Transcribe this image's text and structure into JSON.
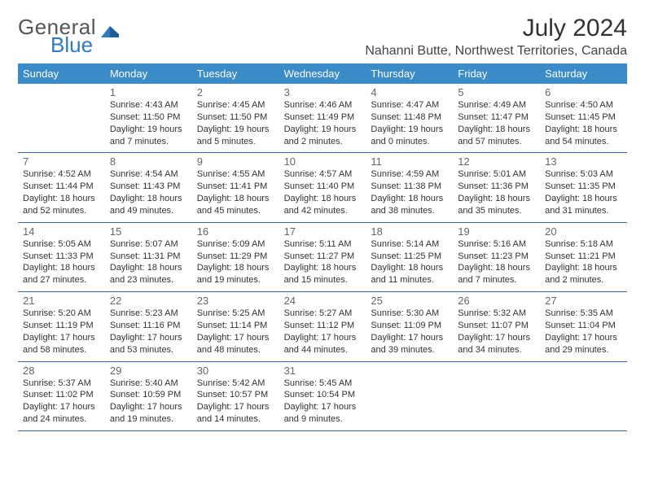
{
  "brand": {
    "part1": "General",
    "part2": "Blue",
    "accent": "#2f7bbf",
    "text": "#555"
  },
  "header": {
    "title": "July 2024",
    "location": "Nahanni Butte, Northwest Territories, Canada"
  },
  "colors": {
    "header_bg": "#3b8bc9",
    "divider": "#2f6ea8",
    "body_text": "#333",
    "daynum": "#666"
  },
  "typography": {
    "title_size": 30,
    "location_size": 16,
    "dow_size": 13,
    "cell_size": 11
  },
  "dow": [
    "Sunday",
    "Monday",
    "Tuesday",
    "Wednesday",
    "Thursday",
    "Friday",
    "Saturday"
  ],
  "weeks": [
    [
      null,
      {
        "d": "1",
        "sr": "Sunrise: 4:43 AM",
        "ss": "Sunset: 11:50 PM",
        "dl1": "Daylight: 19 hours",
        "dl2": "and 7 minutes."
      },
      {
        "d": "2",
        "sr": "Sunrise: 4:45 AM",
        "ss": "Sunset: 11:50 PM",
        "dl1": "Daylight: 19 hours",
        "dl2": "and 5 minutes."
      },
      {
        "d": "3",
        "sr": "Sunrise: 4:46 AM",
        "ss": "Sunset: 11:49 PM",
        "dl1": "Daylight: 19 hours",
        "dl2": "and 2 minutes."
      },
      {
        "d": "4",
        "sr": "Sunrise: 4:47 AM",
        "ss": "Sunset: 11:48 PM",
        "dl1": "Daylight: 19 hours",
        "dl2": "and 0 minutes."
      },
      {
        "d": "5",
        "sr": "Sunrise: 4:49 AM",
        "ss": "Sunset: 11:47 PM",
        "dl1": "Daylight: 18 hours",
        "dl2": "and 57 minutes."
      },
      {
        "d": "6",
        "sr": "Sunrise: 4:50 AM",
        "ss": "Sunset: 11:45 PM",
        "dl1": "Daylight: 18 hours",
        "dl2": "and 54 minutes."
      }
    ],
    [
      {
        "d": "7",
        "sr": "Sunrise: 4:52 AM",
        "ss": "Sunset: 11:44 PM",
        "dl1": "Daylight: 18 hours",
        "dl2": "and 52 minutes."
      },
      {
        "d": "8",
        "sr": "Sunrise: 4:54 AM",
        "ss": "Sunset: 11:43 PM",
        "dl1": "Daylight: 18 hours",
        "dl2": "and 49 minutes."
      },
      {
        "d": "9",
        "sr": "Sunrise: 4:55 AM",
        "ss": "Sunset: 11:41 PM",
        "dl1": "Daylight: 18 hours",
        "dl2": "and 45 minutes."
      },
      {
        "d": "10",
        "sr": "Sunrise: 4:57 AM",
        "ss": "Sunset: 11:40 PM",
        "dl1": "Daylight: 18 hours",
        "dl2": "and 42 minutes."
      },
      {
        "d": "11",
        "sr": "Sunrise: 4:59 AM",
        "ss": "Sunset: 11:38 PM",
        "dl1": "Daylight: 18 hours",
        "dl2": "and 38 minutes."
      },
      {
        "d": "12",
        "sr": "Sunrise: 5:01 AM",
        "ss": "Sunset: 11:36 PM",
        "dl1": "Daylight: 18 hours",
        "dl2": "and 35 minutes."
      },
      {
        "d": "13",
        "sr": "Sunrise: 5:03 AM",
        "ss": "Sunset: 11:35 PM",
        "dl1": "Daylight: 18 hours",
        "dl2": "and 31 minutes."
      }
    ],
    [
      {
        "d": "14",
        "sr": "Sunrise: 5:05 AM",
        "ss": "Sunset: 11:33 PM",
        "dl1": "Daylight: 18 hours",
        "dl2": "and 27 minutes."
      },
      {
        "d": "15",
        "sr": "Sunrise: 5:07 AM",
        "ss": "Sunset: 11:31 PM",
        "dl1": "Daylight: 18 hours",
        "dl2": "and 23 minutes."
      },
      {
        "d": "16",
        "sr": "Sunrise: 5:09 AM",
        "ss": "Sunset: 11:29 PM",
        "dl1": "Daylight: 18 hours",
        "dl2": "and 19 minutes."
      },
      {
        "d": "17",
        "sr": "Sunrise: 5:11 AM",
        "ss": "Sunset: 11:27 PM",
        "dl1": "Daylight: 18 hours",
        "dl2": "and 15 minutes."
      },
      {
        "d": "18",
        "sr": "Sunrise: 5:14 AM",
        "ss": "Sunset: 11:25 PM",
        "dl1": "Daylight: 18 hours",
        "dl2": "and 11 minutes."
      },
      {
        "d": "19",
        "sr": "Sunrise: 5:16 AM",
        "ss": "Sunset: 11:23 PM",
        "dl1": "Daylight: 18 hours",
        "dl2": "and 7 minutes."
      },
      {
        "d": "20",
        "sr": "Sunrise: 5:18 AM",
        "ss": "Sunset: 11:21 PM",
        "dl1": "Daylight: 18 hours",
        "dl2": "and 2 minutes."
      }
    ],
    [
      {
        "d": "21",
        "sr": "Sunrise: 5:20 AM",
        "ss": "Sunset: 11:19 PM",
        "dl1": "Daylight: 17 hours",
        "dl2": "and 58 minutes."
      },
      {
        "d": "22",
        "sr": "Sunrise: 5:23 AM",
        "ss": "Sunset: 11:16 PM",
        "dl1": "Daylight: 17 hours",
        "dl2": "and 53 minutes."
      },
      {
        "d": "23",
        "sr": "Sunrise: 5:25 AM",
        "ss": "Sunset: 11:14 PM",
        "dl1": "Daylight: 17 hours",
        "dl2": "and 48 minutes."
      },
      {
        "d": "24",
        "sr": "Sunrise: 5:27 AM",
        "ss": "Sunset: 11:12 PM",
        "dl1": "Daylight: 17 hours",
        "dl2": "and 44 minutes."
      },
      {
        "d": "25",
        "sr": "Sunrise: 5:30 AM",
        "ss": "Sunset: 11:09 PM",
        "dl1": "Daylight: 17 hours",
        "dl2": "and 39 minutes."
      },
      {
        "d": "26",
        "sr": "Sunrise: 5:32 AM",
        "ss": "Sunset: 11:07 PM",
        "dl1": "Daylight: 17 hours",
        "dl2": "and 34 minutes."
      },
      {
        "d": "27",
        "sr": "Sunrise: 5:35 AM",
        "ss": "Sunset: 11:04 PM",
        "dl1": "Daylight: 17 hours",
        "dl2": "and 29 minutes."
      }
    ],
    [
      {
        "d": "28",
        "sr": "Sunrise: 5:37 AM",
        "ss": "Sunset: 11:02 PM",
        "dl1": "Daylight: 17 hours",
        "dl2": "and 24 minutes."
      },
      {
        "d": "29",
        "sr": "Sunrise: 5:40 AM",
        "ss": "Sunset: 10:59 PM",
        "dl1": "Daylight: 17 hours",
        "dl2": "and 19 minutes."
      },
      {
        "d": "30",
        "sr": "Sunrise: 5:42 AM",
        "ss": "Sunset: 10:57 PM",
        "dl1": "Daylight: 17 hours",
        "dl2": "and 14 minutes."
      },
      {
        "d": "31",
        "sr": "Sunrise: 5:45 AM",
        "ss": "Sunset: 10:54 PM",
        "dl1": "Daylight: 17 hours",
        "dl2": "and 9 minutes."
      },
      null,
      null,
      null
    ]
  ]
}
